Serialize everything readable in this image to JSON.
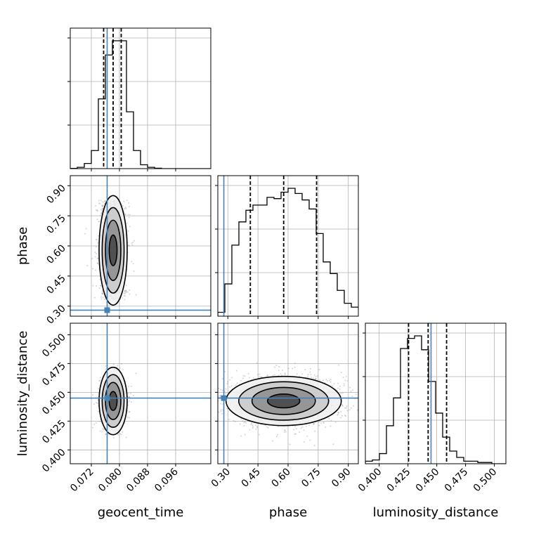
{
  "chart_data": {
    "type": "corner",
    "parameters": [
      {
        "name": "geocent_time",
        "range": [
          0.066,
          0.106
        ],
        "ticks": [
          "0.072",
          "0.080",
          "0.088",
          "0.096"
        ],
        "tick_values": [
          0.072,
          0.08,
          0.088,
          0.096
        ]
      },
      {
        "name": "phase",
        "range": [
          0.25,
          0.95
        ],
        "ticks": [
          "0.30",
          "0.45",
          "0.60",
          "0.75",
          "0.90"
        ],
        "tick_values": [
          0.3,
          0.45,
          0.6,
          0.75,
          0.9
        ]
      },
      {
        "name": "luminosity_distance",
        "range": [
          0.388,
          0.51
        ],
        "ticks": [
          "0.400",
          "0.425",
          "0.450",
          "0.475",
          "0.500"
        ],
        "tick_values": [
          0.4,
          0.425,
          0.45,
          0.475,
          0.5
        ]
      }
    ],
    "truths": [
      0.0765,
      0.28,
      0.445
    ],
    "quantiles": [
      [
        0.0755,
        0.0782,
        0.0805
      ],
      [
        0.412,
        0.578,
        0.742
      ],
      [
        0.4255,
        0.4425,
        0.4585
      ]
    ],
    "histograms": [
      {
        "edges_start": 0.066,
        "bin_width": 0.002,
        "counts": [
          0.2,
          1,
          4,
          14,
          54,
          88,
          99,
          99,
          44,
          14,
          3,
          1,
          0.3,
          0,
          0,
          0,
          0,
          0,
          0,
          0
        ]
      },
      {
        "edges_start": 0.25,
        "bin_width": 0.035,
        "counts": [
          3,
          25,
          55,
          73,
          82,
          86,
          86,
          92,
          91,
          96,
          99,
          95,
          90,
          83,
          64,
          42,
          33,
          20,
          10,
          7
        ]
      },
      {
        "edges_start": 0.388,
        "bin_width": 0.0061,
        "counts": [
          2,
          3,
          8,
          30,
          52,
          91,
          99,
          101,
          90,
          65,
          40,
          21,
          10,
          5,
          2,
          2,
          1,
          1,
          0,
          0
        ]
      }
    ],
    "grid": true,
    "truth_color": "#4682b4"
  }
}
